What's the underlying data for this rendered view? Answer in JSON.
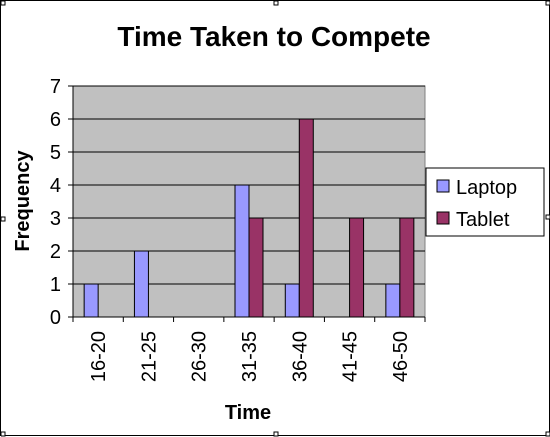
{
  "chart_data": {
    "type": "bar",
    "title": "Time Taken to Compete",
    "xlabel": "Time",
    "ylabel": "Frequency",
    "categories": [
      "16-20",
      "21-25",
      "26-30",
      "31-35",
      "36-40",
      "41-45",
      "46-50"
    ],
    "series": [
      {
        "name": "Laptop",
        "values": [
          1,
          2,
          0,
          4,
          1,
          0,
          1
        ],
        "color": "#9999ff"
      },
      {
        "name": "Tablet",
        "values": [
          0,
          0,
          0,
          3,
          6,
          3,
          3
        ],
        "color": "#993366"
      }
    ],
    "ylim": [
      0,
      7
    ],
    "yticks": [
      "0",
      "1",
      "2",
      "3",
      "4",
      "5",
      "6",
      "7"
    ],
    "grid": true,
    "plot_background": "#c0c0c0",
    "legend_position": "right"
  }
}
